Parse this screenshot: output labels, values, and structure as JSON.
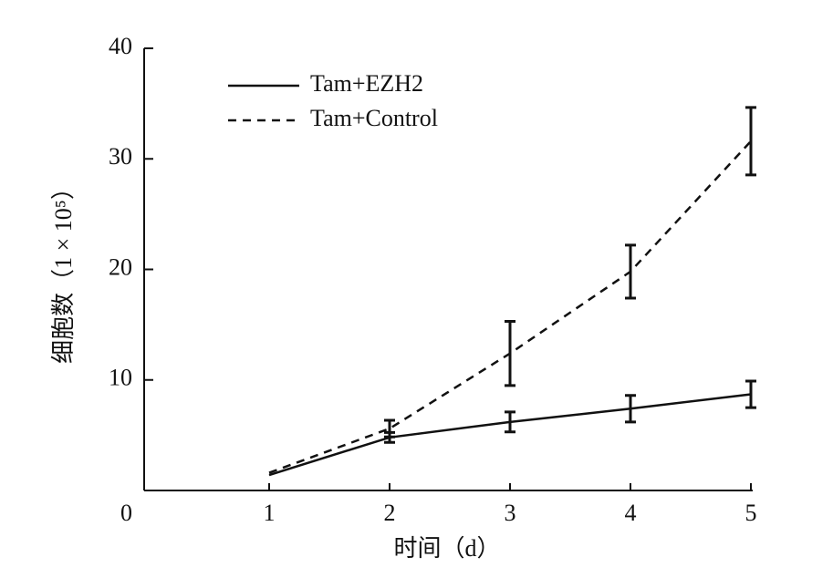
{
  "chart_data": {
    "type": "line",
    "x_label": "时间（d）",
    "y_label": "细胞数（1 × 10⁵）",
    "x": [
      1,
      2,
      3,
      4,
      5
    ],
    "series": [
      {
        "name": "Tam+EZH2",
        "color": "#111111",
        "linestyle": "solid",
        "values": [
          1.4,
          4.8,
          6.2,
          7.4,
          8.7
        ],
        "errors": [
          0,
          0.45,
          0.9,
          1.2,
          1.2
        ]
      },
      {
        "name": "Tam+Control",
        "color": "#111111",
        "linestyle": "dashed",
        "values": [
          1.6,
          5.6,
          12.4,
          19.8,
          31.6
        ],
        "errors": [
          0,
          0.75,
          2.9,
          2.4,
          3.05
        ]
      }
    ],
    "xlim": [
      0,
      5
    ],
    "xticks": [
      1,
      2,
      3,
      4,
      5
    ],
    "ylim": [
      0,
      40
    ],
    "yticks": [
      0,
      10,
      20,
      30,
      40
    ],
    "legend": "upper left"
  }
}
